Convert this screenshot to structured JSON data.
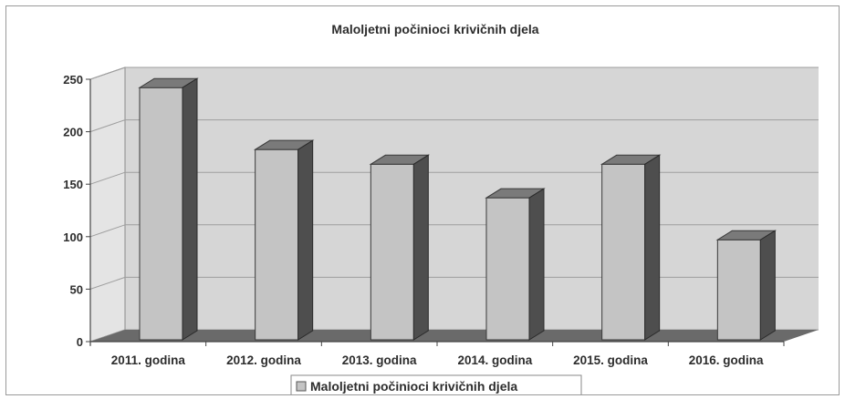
{
  "chart_data": {
    "type": "bar",
    "style": "3d-column",
    "title": "Maloljetni počinioci krivičnih djela",
    "categories": [
      "2011. godina",
      "2012. godina",
      "2013. godina",
      "2014. godina",
      "2015. godina",
      "2016. godina"
    ],
    "series": [
      {
        "name": "Maloljetni počinioci krivičnih djela",
        "values": [
          242,
          183,
          169,
          137,
          169,
          97
        ]
      }
    ],
    "ylim": [
      0,
      250
    ],
    "yticks": [
      0,
      50,
      100,
      150,
      200,
      250
    ],
    "xlabel": "",
    "ylabel": "",
    "grid": true,
    "legend": "bottom-center",
    "colors": {
      "bar_front": "#c4c4c4",
      "bar_top": "#7a7a7a",
      "bar_side": "#4e4e4e",
      "wall": "#d6d6d6",
      "floor": "#6a6a6a",
      "gridline": "#9e9e9e",
      "text": "#2d2d2d"
    }
  }
}
